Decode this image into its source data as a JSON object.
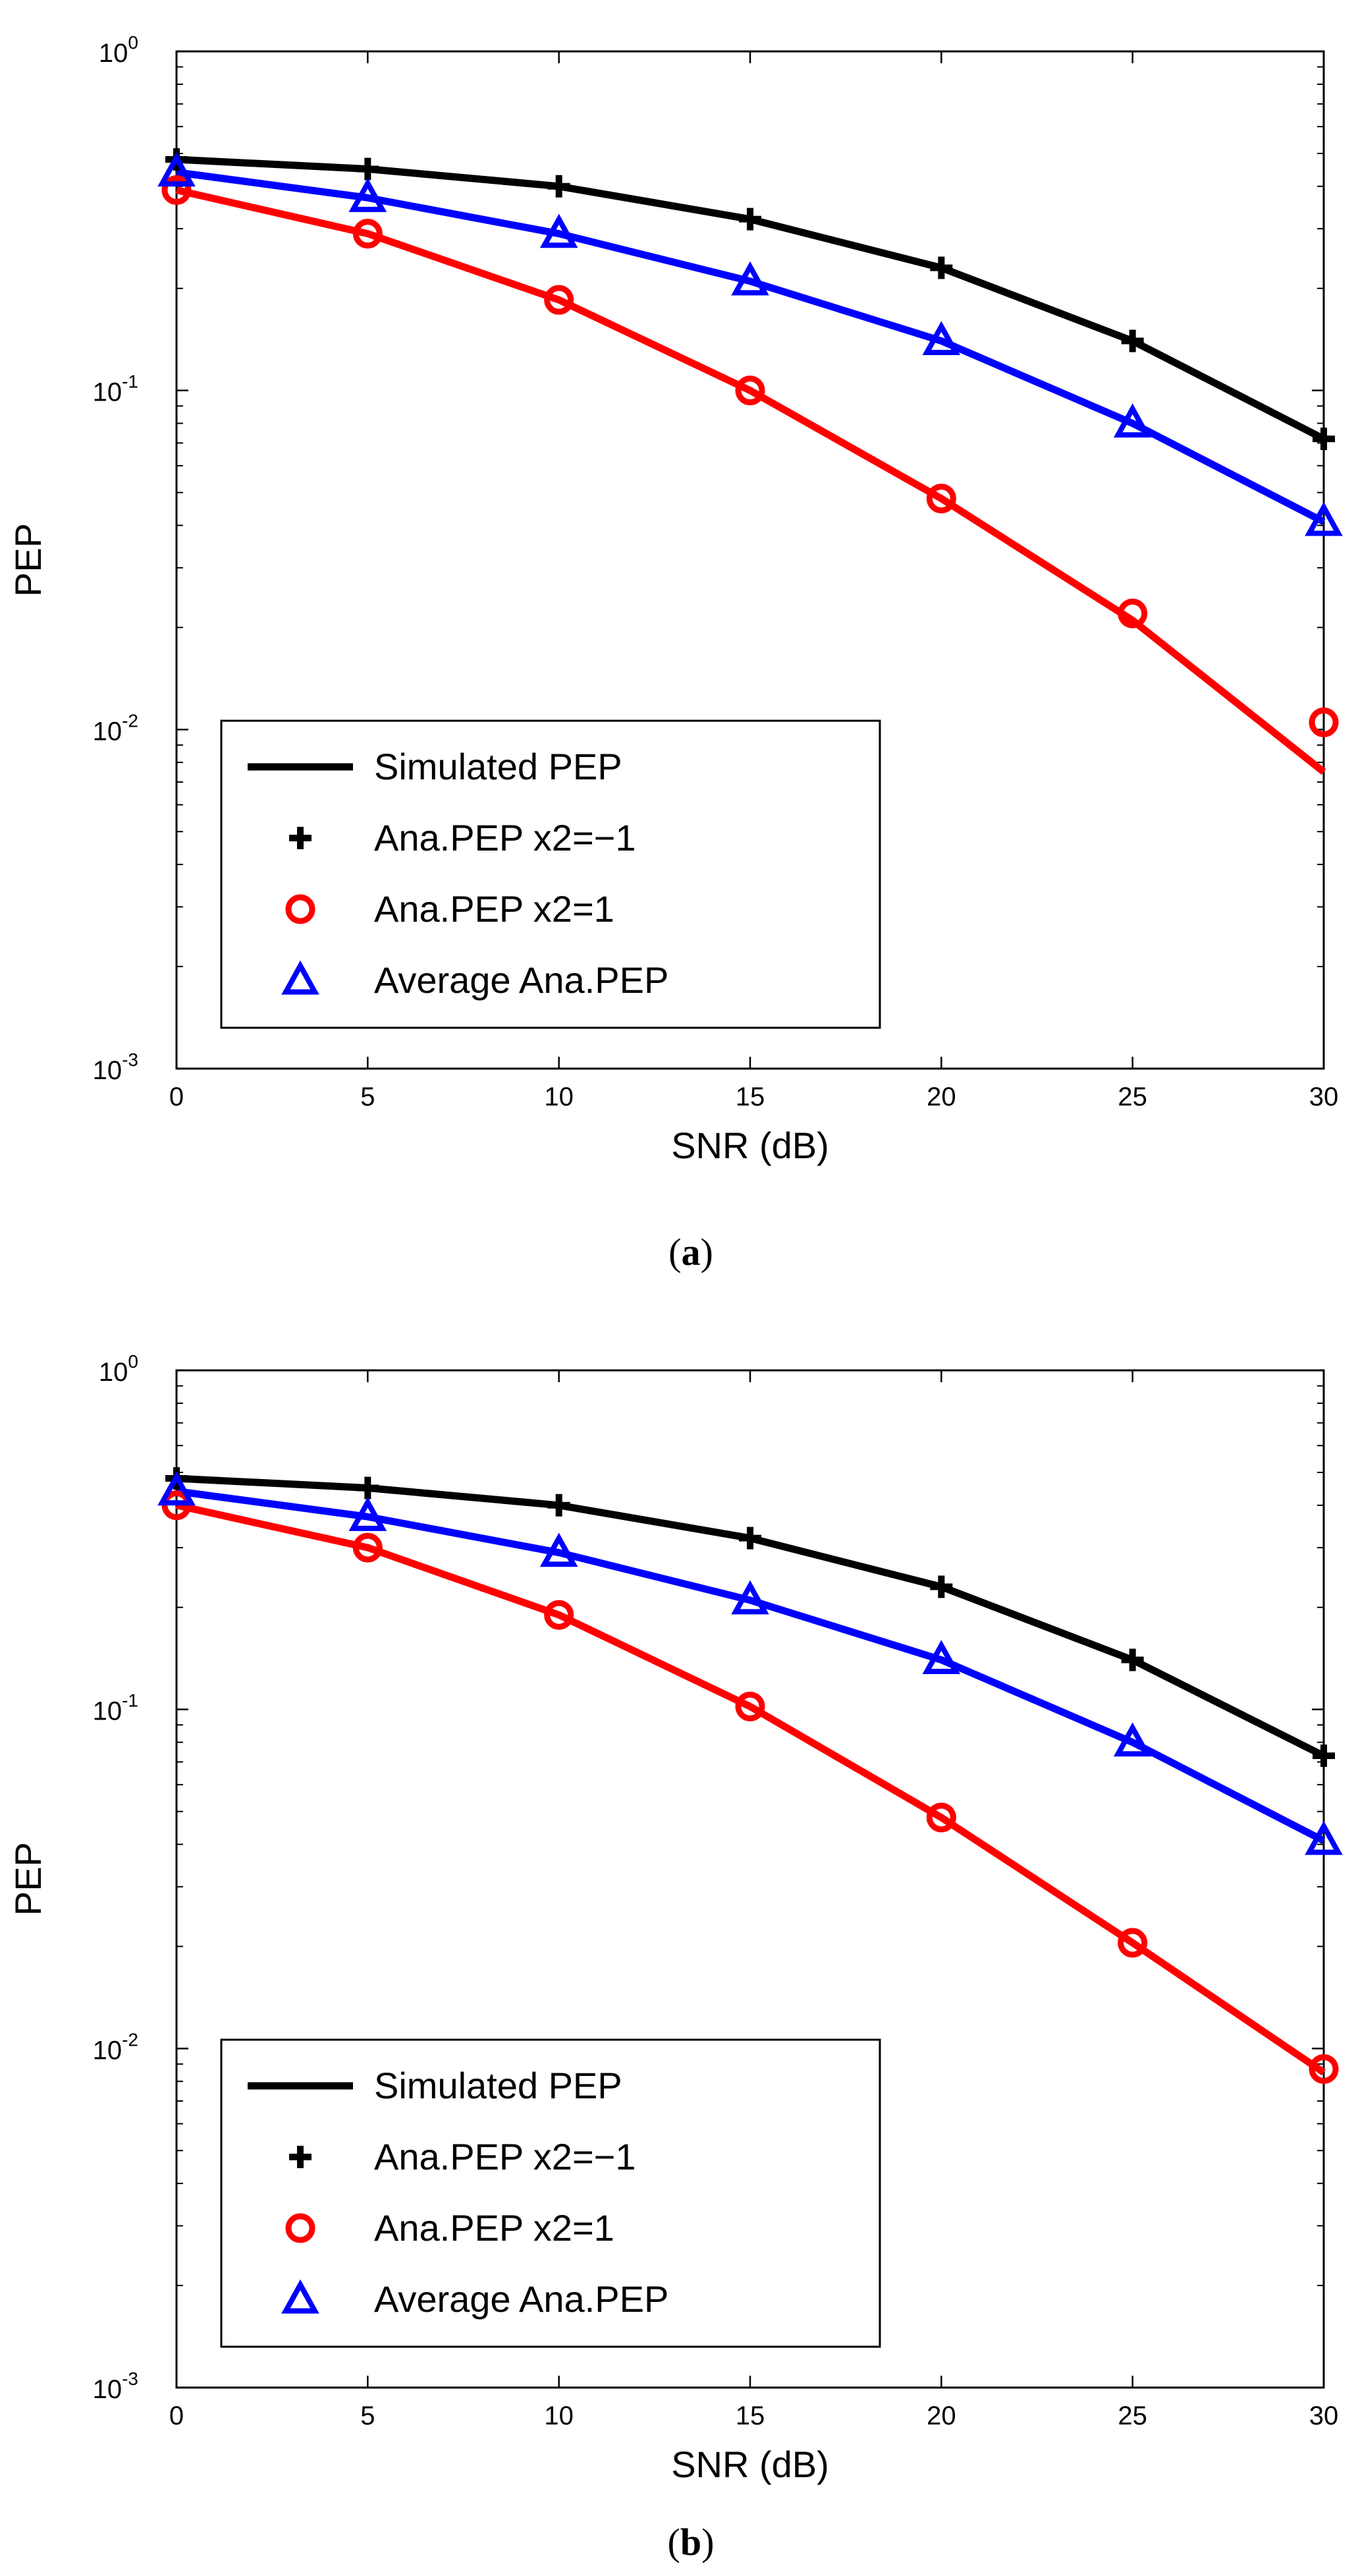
{
  "chart_data": [
    {
      "type": "line",
      "caption_open": "(",
      "caption_letter": "a",
      "caption_close": ")",
      "xlabel": "SNR (dB)",
      "ylabel": "PEP",
      "xlim": [
        0,
        30
      ],
      "ylim": [
        0.001,
        1
      ],
      "yscale": "log",
      "grid": false,
      "legend_position": "bottom-left",
      "x": [
        0,
        5,
        10,
        15,
        20,
        25,
        30
      ],
      "x_tick_labels": [
        "0",
        "5",
        "10",
        "15",
        "20",
        "25",
        "30"
      ],
      "y_tick_labels": [
        {
          "base": "10",
          "exp": "0"
        },
        {
          "base": "10",
          "exp": "-1"
        },
        {
          "base": "10",
          "exp": "-2"
        },
        {
          "base": "10",
          "exp": "-3"
        }
      ],
      "series": [
        {
          "name": "Simulated PEP",
          "color": "#000000",
          "marker": "none",
          "values": [
            0.48,
            0.45,
            0.4,
            0.32,
            0.23,
            0.14,
            0.072
          ]
        },
        {
          "name": "Simulated PEP",
          "color": "#0000ff",
          "marker": "none",
          "legend": false,
          "values": [
            0.44,
            0.37,
            0.29,
            0.21,
            0.14,
            0.08,
            0.041
          ]
        },
        {
          "name": "Simulated PEP",
          "color": "#ff0000",
          "marker": "none",
          "legend": false,
          "values": [
            0.39,
            0.29,
            0.185,
            0.1,
            0.048,
            0.021,
            0.0075
          ]
        },
        {
          "name": "Ana.PEP x2=−1",
          "color": "#000000",
          "marker": "plus",
          "values": [
            0.48,
            0.45,
            0.4,
            0.32,
            0.23,
            0.14,
            0.072
          ]
        },
        {
          "name": "Ana.PEP x2=1",
          "color": "#ff0000",
          "marker": "circle",
          "values": [
            0.39,
            0.29,
            0.185,
            0.1,
            0.048,
            0.022,
            0.0105
          ]
        },
        {
          "name": "Average Ana.PEP",
          "color": "#0000ff",
          "marker": "triangle",
          "values": [
            0.44,
            0.37,
            0.29,
            0.21,
            0.14,
            0.08,
            0.041
          ]
        }
      ],
      "legend": [
        {
          "label": "Simulated PEP",
          "color": "#000000",
          "marker": "line"
        },
        {
          "label": "Ana.PEP x2=−1",
          "color": "#000000",
          "marker": "plus"
        },
        {
          "label": "Ana.PEP x2=1",
          "color": "#ff0000",
          "marker": "circle"
        },
        {
          "label": "Average Ana.PEP",
          "color": "#0000ff",
          "marker": "triangle"
        }
      ]
    },
    {
      "type": "line",
      "caption_open": "(",
      "caption_letter": "b",
      "caption_close": ")",
      "xlabel": "SNR (dB)",
      "ylabel": "PEP",
      "xlim": [
        0,
        30
      ],
      "ylim": [
        0.001,
        1
      ],
      "yscale": "log",
      "grid": false,
      "legend_position": "bottom-left",
      "x": [
        0,
        5,
        10,
        15,
        20,
        25,
        30
      ],
      "x_tick_labels": [
        "0",
        "5",
        "10",
        "15",
        "20",
        "25",
        "30"
      ],
      "y_tick_labels": [
        {
          "base": "10",
          "exp": "0"
        },
        {
          "base": "10",
          "exp": "-1"
        },
        {
          "base": "10",
          "exp": "-2"
        },
        {
          "base": "10",
          "exp": "-3"
        }
      ],
      "series": [
        {
          "name": "Simulated PEP",
          "color": "#000000",
          "marker": "none",
          "values": [
            0.48,
            0.45,
            0.4,
            0.32,
            0.23,
            0.14,
            0.073
          ]
        },
        {
          "name": "Simulated PEP",
          "color": "#0000ff",
          "marker": "none",
          "legend": false,
          "values": [
            0.44,
            0.37,
            0.29,
            0.21,
            0.14,
            0.08,
            0.041
          ]
        },
        {
          "name": "Simulated PEP",
          "color": "#ff0000",
          "marker": "none",
          "legend": false,
          "values": [
            0.4,
            0.3,
            0.19,
            0.102,
            0.048,
            0.0205,
            0.0085
          ]
        },
        {
          "name": "Ana.PEP x2=−1",
          "color": "#000000",
          "marker": "plus",
          "values": [
            0.48,
            0.45,
            0.4,
            0.32,
            0.23,
            0.14,
            0.073
          ]
        },
        {
          "name": "Ana.PEP x2=1",
          "color": "#ff0000",
          "marker": "circle",
          "values": [
            0.4,
            0.3,
            0.19,
            0.102,
            0.048,
            0.0205,
            0.0087
          ]
        },
        {
          "name": "Average Ana.PEP",
          "color": "#0000ff",
          "marker": "triangle",
          "values": [
            0.44,
            0.37,
            0.29,
            0.21,
            0.14,
            0.08,
            0.041
          ]
        }
      ],
      "legend": [
        {
          "label": "Simulated PEP",
          "color": "#000000",
          "marker": "line"
        },
        {
          "label": "Ana.PEP x2=−1",
          "color": "#000000",
          "marker": "plus"
        },
        {
          "label": "Ana.PEP x2=1",
          "color": "#ff0000",
          "marker": "circle"
        },
        {
          "label": "Average Ana.PEP",
          "color": "#0000ff",
          "marker": "triangle"
        }
      ]
    }
  ]
}
